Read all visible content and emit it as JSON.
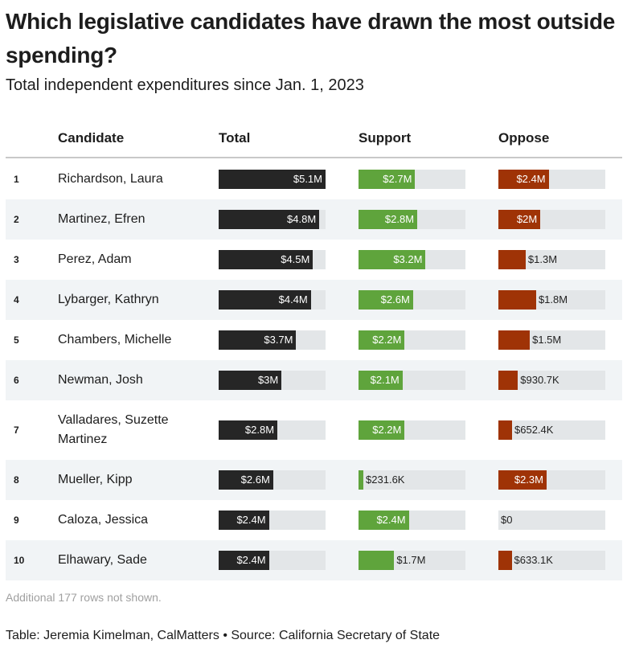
{
  "header": {
    "title": "Which legislative candidates have drawn the most outside spending?",
    "subtitle": "Total independent expenditures since Jan. 1, 2023"
  },
  "table": {
    "columns": [
      "Candidate",
      "Total",
      "Support",
      "Oppose"
    ],
    "rows": [
      {
        "rank": 1,
        "candidate": "Richardson, Laura",
        "total": 5100000,
        "total_label": "$5.1M",
        "support": 2700000,
        "support_label": "$2.7M",
        "oppose": 2400000,
        "oppose_label": "$2.4M"
      },
      {
        "rank": 2,
        "candidate": "Martinez, Efren",
        "total": 4800000,
        "total_label": "$4.8M",
        "support": 2800000,
        "support_label": "$2.8M",
        "oppose": 2000000,
        "oppose_label": "$2M"
      },
      {
        "rank": 3,
        "candidate": "Perez, Adam",
        "total": 4500000,
        "total_label": "$4.5M",
        "support": 3200000,
        "support_label": "$3.2M",
        "oppose": 1300000,
        "oppose_label": "$1.3M"
      },
      {
        "rank": 4,
        "candidate": "Lybarger, Kathryn",
        "total": 4400000,
        "total_label": "$4.4M",
        "support": 2600000,
        "support_label": "$2.6M",
        "oppose": 1800000,
        "oppose_label": "$1.8M"
      },
      {
        "rank": 5,
        "candidate": "Chambers, Michelle",
        "total": 3700000,
        "total_label": "$3.7M",
        "support": 2200000,
        "support_label": "$2.2M",
        "oppose": 1500000,
        "oppose_label": "$1.5M"
      },
      {
        "rank": 6,
        "candidate": "Newman, Josh",
        "total": 3000000,
        "total_label": "$3M",
        "support": 2100000,
        "support_label": "$2.1M",
        "oppose": 930700,
        "oppose_label": "$930.7K"
      },
      {
        "rank": 7,
        "candidate": "Valladares, Suzette Martinez",
        "total": 2800000,
        "total_label": "$2.8M",
        "support": 2200000,
        "support_label": "$2.2M",
        "oppose": 652400,
        "oppose_label": "$652.4K"
      },
      {
        "rank": 8,
        "candidate": "Mueller, Kipp",
        "total": 2600000,
        "total_label": "$2.6M",
        "support": 231600,
        "support_label": "$231.6K",
        "oppose": 2300000,
        "oppose_label": "$2.3M"
      },
      {
        "rank": 9,
        "candidate": "Caloza, Jessica",
        "total": 2400000,
        "total_label": "$2.4M",
        "support": 2400000,
        "support_label": "$2.4M",
        "oppose": 0,
        "oppose_label": "$0"
      },
      {
        "rank": 10,
        "candidate": "Elhawary, Sade",
        "total": 2400000,
        "total_label": "$2.4M",
        "support": 1700000,
        "support_label": "$1.7M",
        "oppose": 633100,
        "oppose_label": "$633.1K"
      }
    ],
    "colors": {
      "total": "#262626",
      "support": "#5fa43c",
      "oppose": "#9f3306"
    }
  },
  "note": "Additional 177 rows not shown.",
  "footer": "Table: Jeremia Kimelman, CalMatters • Source: California Secretary of State"
}
